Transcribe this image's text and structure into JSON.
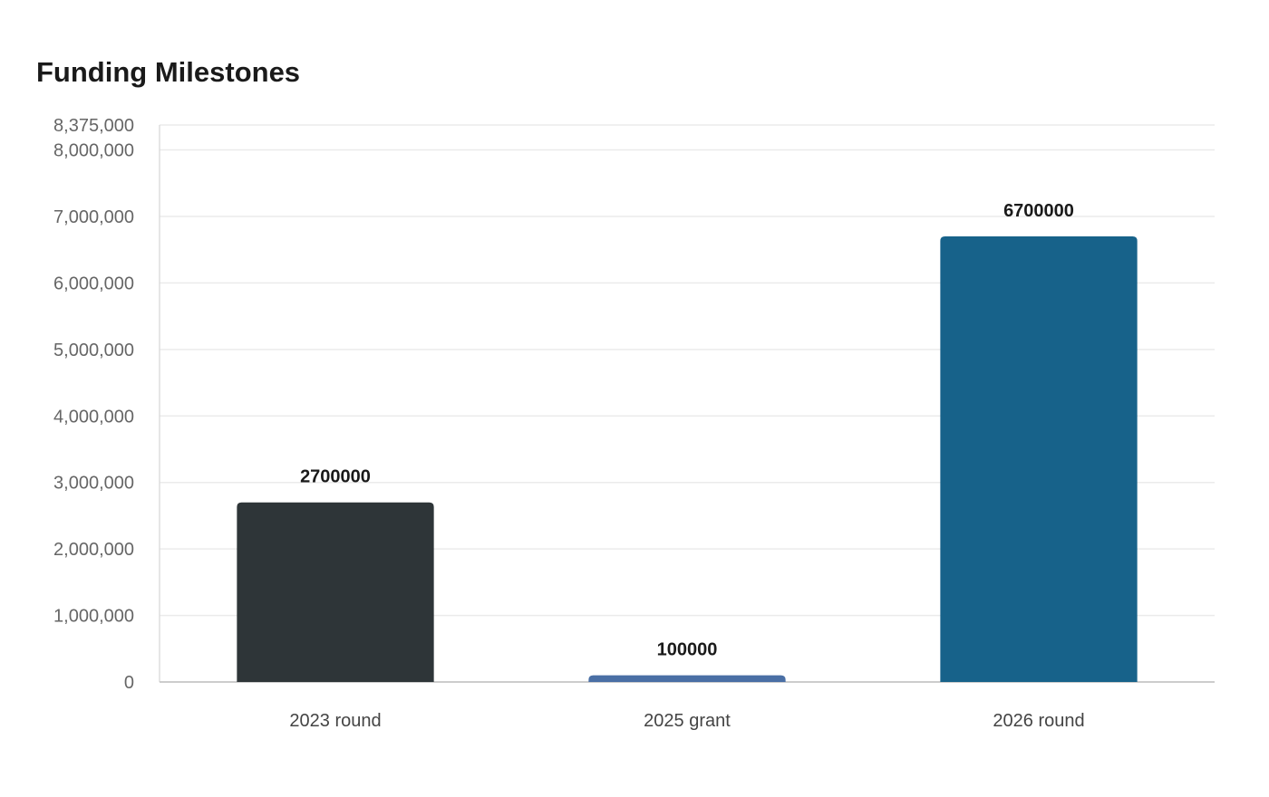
{
  "chart_data": {
    "type": "bar",
    "title": "Funding Milestones",
    "xlabel": "",
    "ylabel": "",
    "categories": [
      "2023 round",
      "2025 grant",
      "2026 round"
    ],
    "values": [
      2700000,
      100000,
      6700000
    ],
    "value_labels": [
      "2700000",
      "100000",
      "6700000"
    ],
    "ylim": [
      0,
      8375000
    ],
    "yticks": [
      0,
      1000000,
      2000000,
      3000000,
      4000000,
      5000000,
      6000000,
      7000000,
      8000000,
      8375000
    ],
    "ytick_labels": [
      "0",
      "1,000,000",
      "2,000,000",
      "3,000,000",
      "4,000,000",
      "5,000,000",
      "6,000,000",
      "7,000,000",
      "8,000,000",
      "8,375,000"
    ],
    "colors": [
      "#2e3538",
      "#4a6fa5",
      "#17628a"
    ],
    "grid": true,
    "legend": "none"
  }
}
